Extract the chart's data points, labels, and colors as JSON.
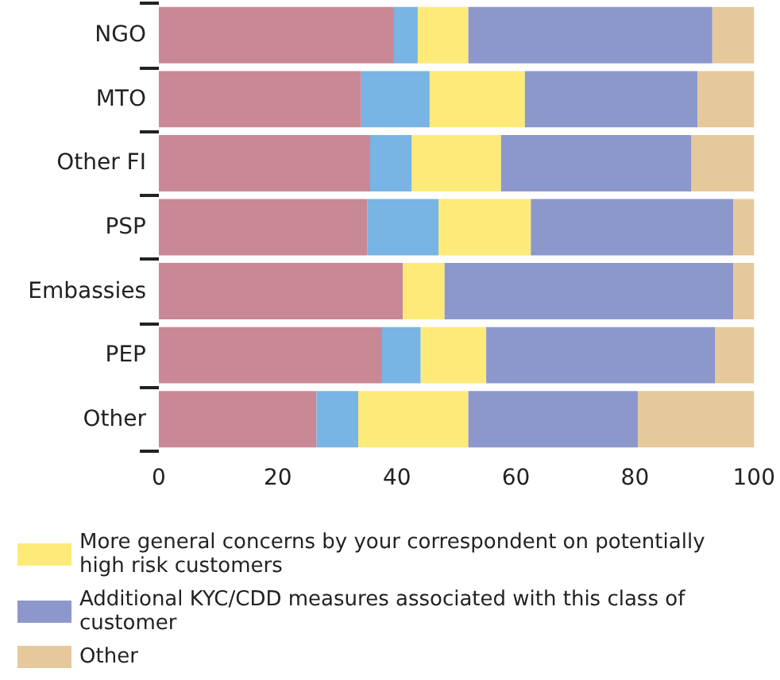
{
  "chart_data": {
    "type": "bar",
    "orientation": "horizontal",
    "stacked": true,
    "categories": [
      "NGO",
      "MTO",
      "Other FI",
      "PSP",
      "Embassies",
      "PEP",
      "Other"
    ],
    "series": [
      {
        "color": "#c88896",
        "values": [
          39.5,
          34,
          35.5,
          35,
          41,
          37.5,
          26.5
        ]
      },
      {
        "color": "#78b4e4",
        "values": [
          4,
          11.5,
          7,
          12,
          0,
          6.5,
          7
        ]
      },
      {
        "name": "More general concerns by your correspondent on potentially high risk customers",
        "color": "#fdea78",
        "values": [
          8.5,
          16,
          15,
          15.5,
          7,
          11,
          18.5
        ]
      },
      {
        "name": "Additional KYC/CDD measures associated with this class of customer",
        "color": "#8c98cc",
        "values": [
          41,
          29,
          32,
          34,
          48.5,
          38.5,
          28.5
        ]
      },
      {
        "name": "Other",
        "color": "#e6c99a",
        "values": [
          7,
          9.5,
          10.5,
          3.5,
          3.5,
          6.5,
          19.5
        ]
      }
    ],
    "xlim": [
      0,
      100
    ],
    "xticks": [
      0,
      20,
      40,
      60,
      80,
      100
    ],
    "grid": false,
    "legend": "bottom left"
  }
}
